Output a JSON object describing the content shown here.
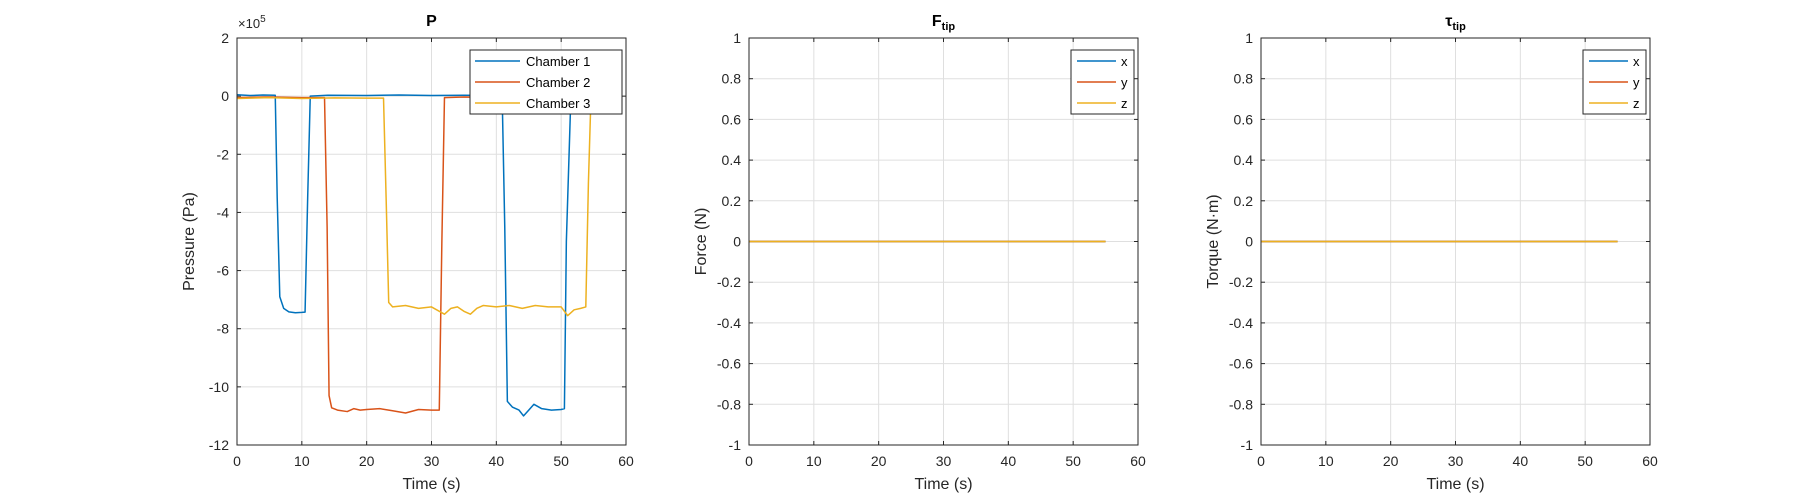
{
  "chart_data": [
    {
      "type": "line",
      "title": "P",
      "xlabel": "Time (s)",
      "ylabel": "Pressure (Pa)",
      "xlim": [
        0,
        60
      ],
      "ylim": [
        -12,
        2
      ],
      "xticks": [
        "0",
        "10",
        "20",
        "30",
        "40",
        "50",
        "60"
      ],
      "yticks": [
        "2",
        "0",
        "-2",
        "-4",
        "-6",
        "-8",
        "-10",
        "-12"
      ],
      "y_multiplier": "×10",
      "y_multiplier_exp": "5",
      "grid": true,
      "legend_position": "top-right",
      "series": [
        {
          "name": "Chamber 1",
          "color": "#0072BD",
          "x": [
            0,
            2,
            4,
            5.9,
            6.2,
            6.6,
            7.2,
            8,
            9,
            10,
            10.5,
            10.9,
            11.3,
            14,
            20,
            25,
            30,
            35,
            40,
            40.9,
            41.3,
            41.7,
            42.5,
            43.5,
            44.2,
            45,
            45.8,
            47,
            48.5,
            50,
            50.5,
            50.8,
            51.5,
            53,
            55
          ],
          "y": [
            0.05,
            0.02,
            0.04,
            0.03,
            -3.5,
            -6.9,
            -7.3,
            -7.42,
            -7.45,
            -7.44,
            -7.43,
            -3.5,
            0.0,
            0.03,
            0.02,
            0.04,
            0.02,
            0.03,
            0.02,
            0.0,
            -4.5,
            -10.5,
            -10.7,
            -10.8,
            -11.0,
            -10.8,
            -10.6,
            -10.75,
            -10.8,
            -10.78,
            -10.75,
            -5,
            0.0,
            0.02,
            0.0
          ]
        },
        {
          "name": "Chamber 2",
          "color": "#D95319",
          "x": [
            0,
            5,
            10,
            13.5,
            13.9,
            14.2,
            14.6,
            15.5,
            17,
            18,
            19,
            20,
            22,
            24,
            26,
            28,
            30,
            31.2,
            31.6,
            32,
            35,
            40,
            45,
            50,
            55
          ],
          "y": [
            -0.05,
            -0.03,
            -0.05,
            -0.05,
            -4.5,
            -10.3,
            -10.72,
            -10.8,
            -10.85,
            -10.75,
            -10.8,
            -10.78,
            -10.75,
            -10.82,
            -10.9,
            -10.78,
            -10.8,
            -10.8,
            -5,
            -0.05,
            -0.03,
            -0.05,
            -0.04,
            -0.05,
            -0.03
          ]
        },
        {
          "name": "Chamber 3",
          "color": "#EDB120",
          "x": [
            0,
            5,
            10,
            15,
            20,
            22.6,
            23,
            23.4,
            24,
            26,
            28,
            30,
            32,
            33,
            34,
            35,
            36,
            37,
            38,
            40,
            42,
            44,
            46,
            48,
            50,
            51,
            52,
            53,
            53.8,
            54.2,
            54.6,
            55
          ],
          "y": [
            -0.08,
            -0.05,
            -0.08,
            -0.06,
            -0.07,
            -0.07,
            -3.5,
            -7.1,
            -7.25,
            -7.2,
            -7.3,
            -7.25,
            -7.5,
            -7.3,
            -7.25,
            -7.4,
            -7.5,
            -7.3,
            -7.2,
            -7.25,
            -7.2,
            -7.3,
            -7.2,
            -7.25,
            -7.25,
            -7.55,
            -7.35,
            -7.3,
            -7.25,
            -3,
            0.0,
            -0.02
          ]
        }
      ]
    },
    {
      "type": "line",
      "title": "F",
      "title_sub": "tip",
      "xlabel": "Time (s)",
      "ylabel": "Force (N)",
      "xlim": [
        0,
        60
      ],
      "ylim": [
        -1,
        1
      ],
      "xticks": [
        "0",
        "10",
        "20",
        "30",
        "40",
        "50",
        "60"
      ],
      "yticks": [
        "1",
        "0.8",
        "0.6",
        "0.4",
        "0.2",
        "0",
        "-0.2",
        "-0.4",
        "-0.6",
        "-0.8",
        "-1"
      ],
      "grid": true,
      "legend_position": "top-right",
      "series": [
        {
          "name": "x",
          "color": "#0072BD",
          "x": [
            0,
            55
          ],
          "y": [
            0,
            0
          ]
        },
        {
          "name": "y",
          "color": "#D95319",
          "x": [
            0,
            55
          ],
          "y": [
            0,
            0
          ]
        },
        {
          "name": "z",
          "color": "#EDB120",
          "x": [
            0,
            55
          ],
          "y": [
            0,
            0
          ]
        }
      ]
    },
    {
      "type": "line",
      "title": "τ",
      "title_sub": "tip",
      "xlabel": "Time (s)",
      "ylabel": "Torque (N·m)",
      "xlim": [
        0,
        60
      ],
      "ylim": [
        -1,
        1
      ],
      "xticks": [
        "0",
        "10",
        "20",
        "30",
        "40",
        "50",
        "60"
      ],
      "yticks": [
        "1",
        "0.8",
        "0.6",
        "0.4",
        "0.2",
        "0",
        "-0.2",
        "-0.4",
        "-0.6",
        "-0.8",
        "-1"
      ],
      "grid": true,
      "legend_position": "top-right",
      "series": [
        {
          "name": "x",
          "color": "#0072BD",
          "x": [
            0,
            55
          ],
          "y": [
            0,
            0
          ]
        },
        {
          "name": "y",
          "color": "#D95319",
          "x": [
            0,
            55
          ],
          "y": [
            0,
            0
          ]
        },
        {
          "name": "z",
          "color": "#EDB120",
          "x": [
            0,
            55
          ],
          "y": [
            0,
            0
          ]
        }
      ]
    }
  ]
}
